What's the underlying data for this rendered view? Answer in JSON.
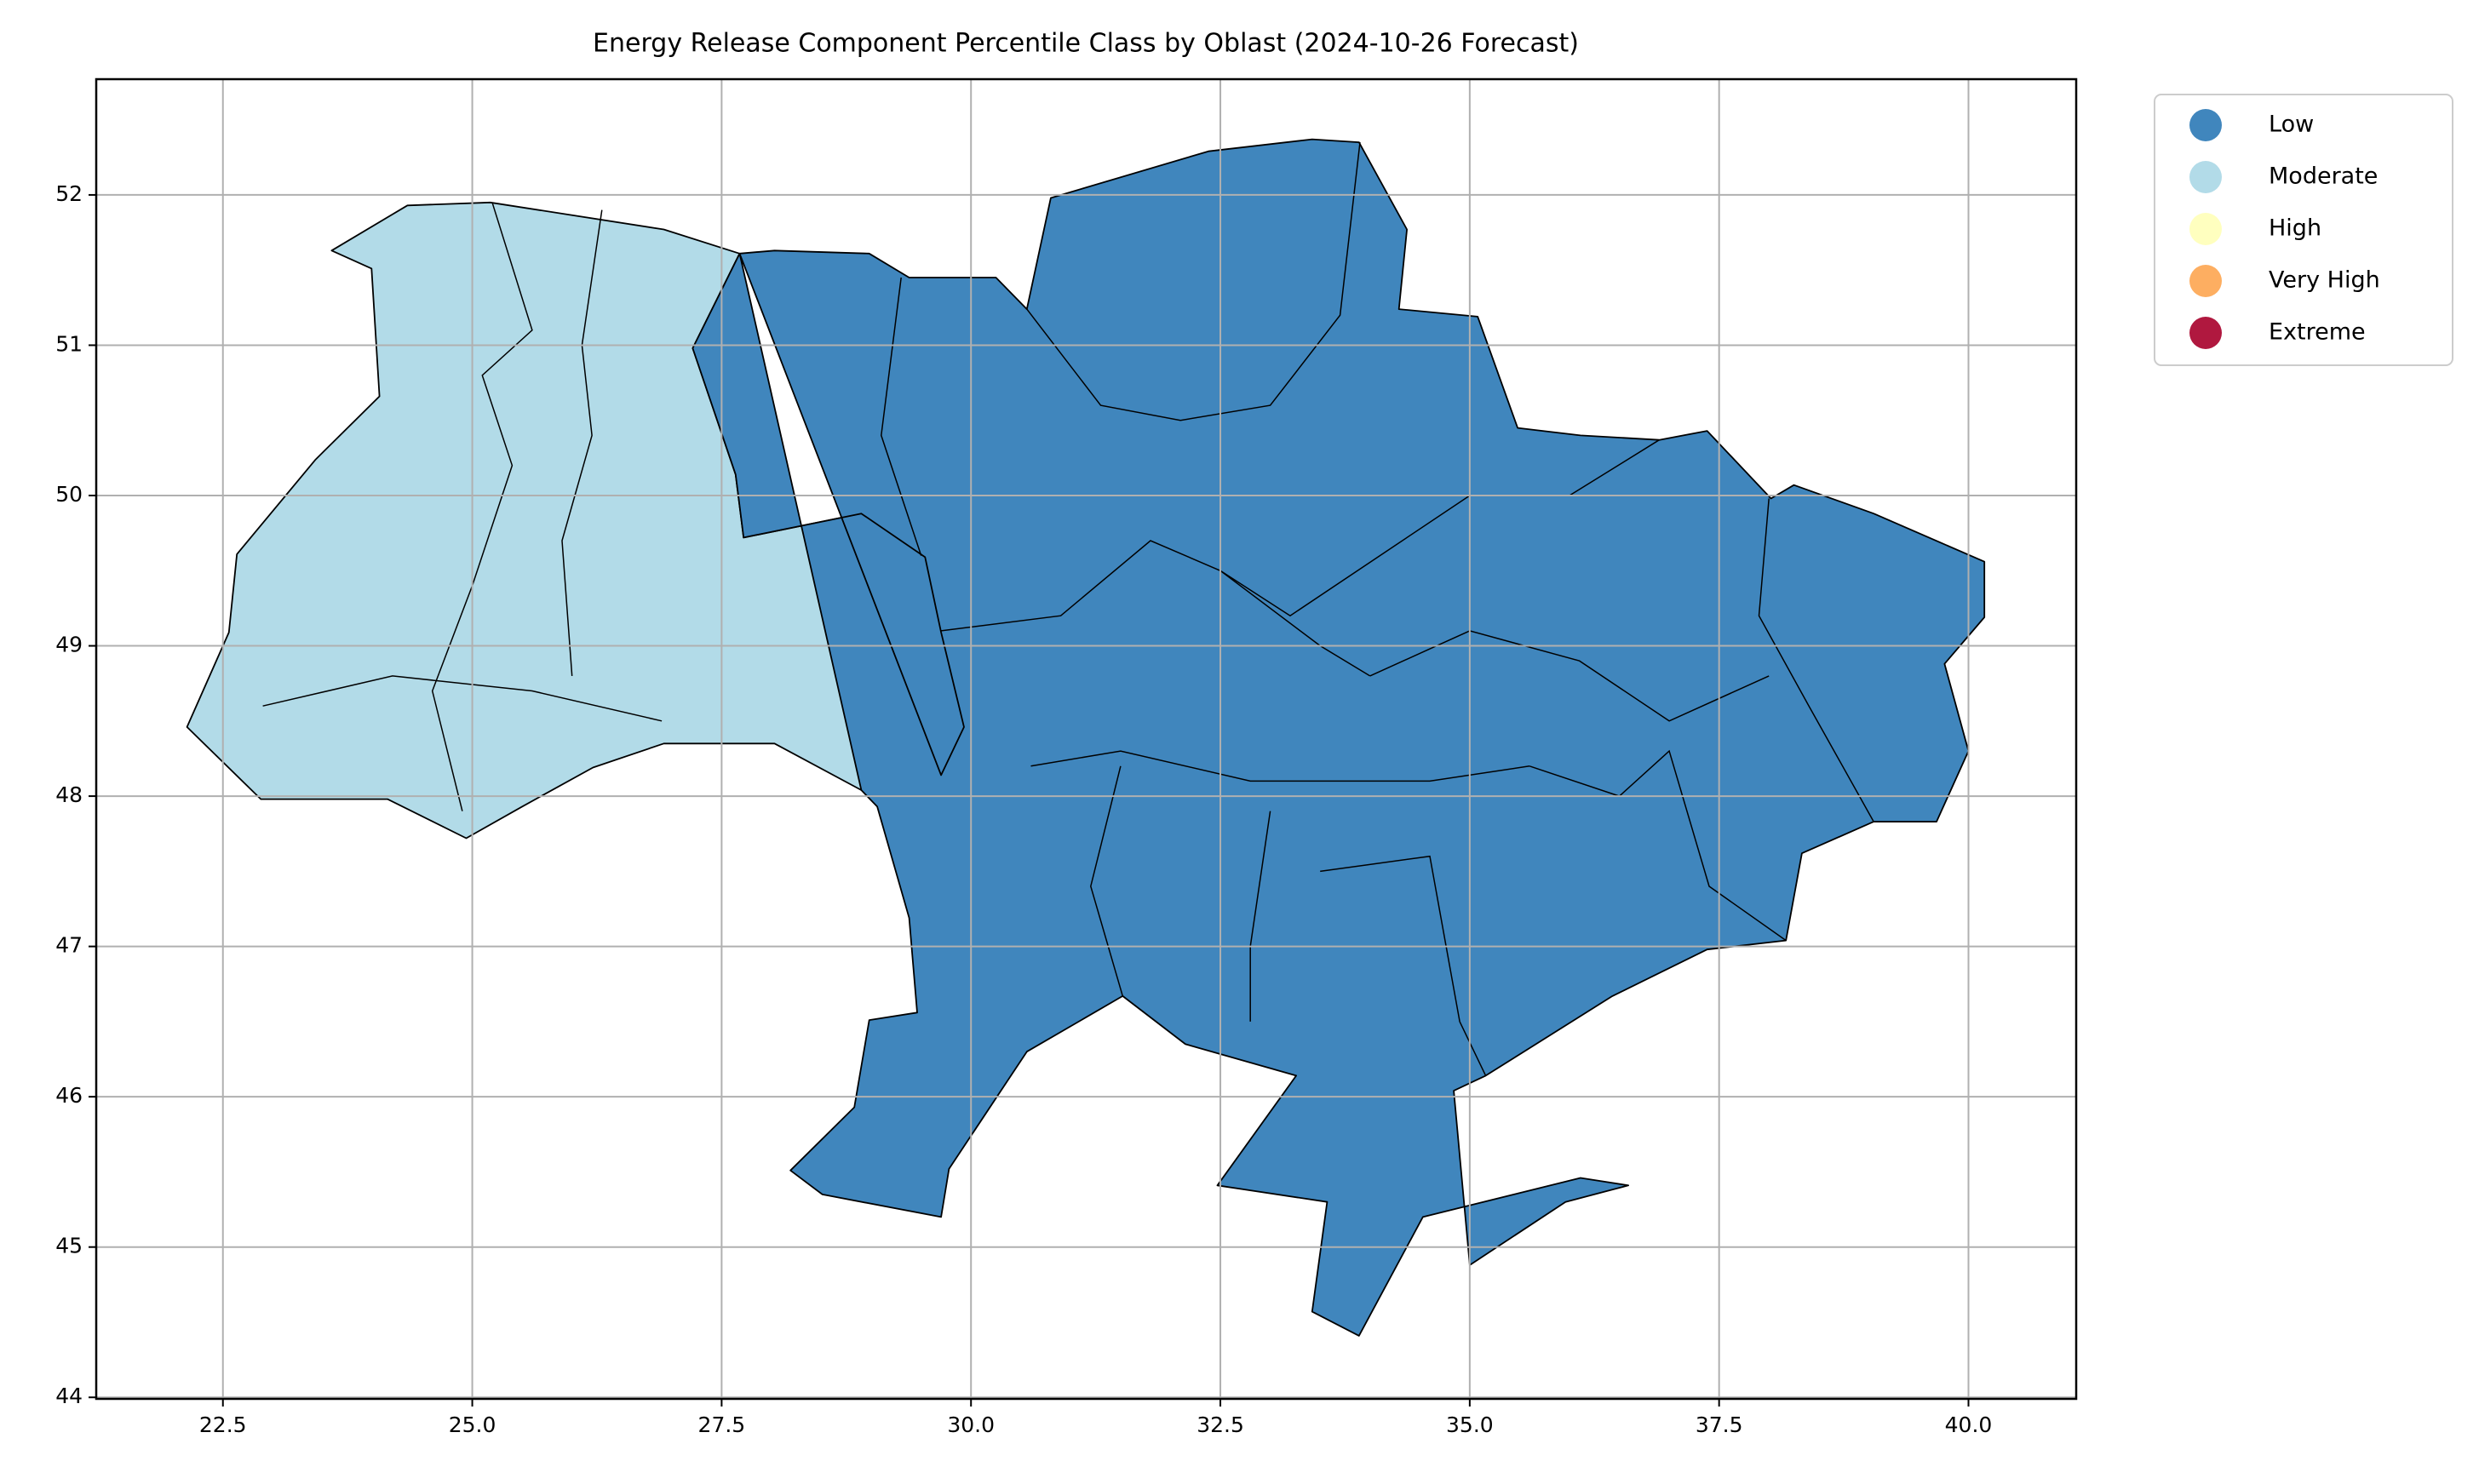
{
  "chart_data": {
    "type": "map",
    "title": "Energy Release Component Percentile Class by Oblast (2024-10-26 Forecast)",
    "classes": [
      {
        "name": "Low",
        "color": "#4086bd"
      },
      {
        "name": "Moderate",
        "color": "#b2dbe8"
      },
      {
        "name": "High",
        "color": "#ffffbf"
      },
      {
        "name": "Very High",
        "color": "#fdae61"
      },
      {
        "name": "Extreme",
        "color": "#b0183f"
      }
    ],
    "legend_loc": "outside upper right",
    "grid": true,
    "xlim": [
      21.23,
      41.08
    ],
    "ylim": [
      43.99,
      52.77
    ],
    "xticks": [
      22.5,
      {
        "value": 25,
        "label": "25.0"
      },
      27.5,
      {
        "value": 30,
        "label": "30.0"
      },
      32.5,
      {
        "value": 35,
        "label": "35.0"
      },
      37.5,
      {
        "value": 40,
        "label": "40.0"
      }
    ],
    "yticks": [
      44,
      45,
      46,
      47,
      48,
      49,
      50,
      51,
      52
    ]
  }
}
